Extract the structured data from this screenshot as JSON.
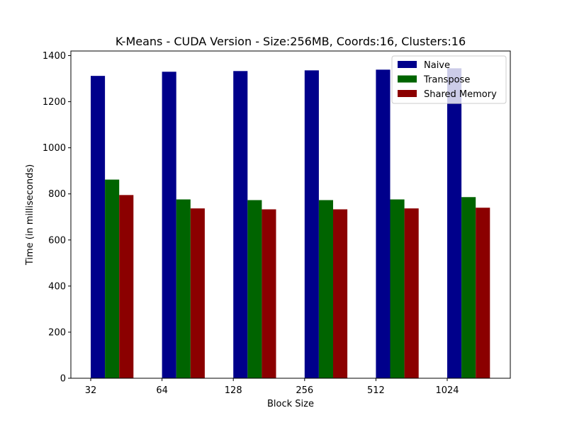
{
  "chart_data": {
    "type": "bar",
    "title": "K-Means - CUDA Version - Size:256MB, Coords:16, Clusters:16",
    "xlabel": "Block Size",
    "ylabel": "Time (in milliseconds)",
    "categories": [
      "32",
      "64",
      "128",
      "256",
      "512",
      "1024"
    ],
    "ylim": [
      0,
      1420
    ],
    "yticks": [
      0,
      200,
      400,
      600,
      800,
      1000,
      1200,
      1400
    ],
    "grid": false,
    "legend_position": "upper right",
    "series": [
      {
        "name": "Naive",
        "color": "#00008b",
        "values": [
          1312,
          1330,
          1333,
          1336,
          1339,
          1345
        ]
      },
      {
        "name": "Transpose",
        "color": "#006400",
        "values": [
          862,
          776,
          773,
          773,
          776,
          786
        ]
      },
      {
        "name": "Shared Memory",
        "color": "#8b0000",
        "values": [
          795,
          737,
          733,
          733,
          737,
          740
        ]
      }
    ]
  }
}
